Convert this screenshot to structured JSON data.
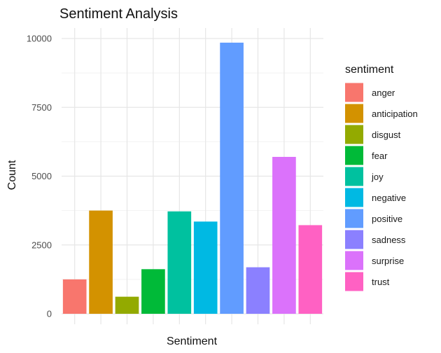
{
  "chart_data": {
    "type": "bar",
    "title": "Sentiment Analysis",
    "xlabel": "Sentiment",
    "ylabel": "Count",
    "categories": [
      "anger",
      "anticipation",
      "disgust",
      "fear",
      "joy",
      "negative",
      "positive",
      "sadness",
      "surprise",
      "trust"
    ],
    "values": [
      1250,
      3750,
      620,
      1620,
      3720,
      3350,
      9850,
      1690,
      5700,
      3220
    ],
    "colors": [
      "#F8766D",
      "#D39200",
      "#93AA00",
      "#00BA38",
      "#00C19F",
      "#00B9E3",
      "#619CFF",
      "#8B80FF",
      "#DB72FB",
      "#FF61C3"
    ],
    "ylim": [
      0,
      10300
    ],
    "yticks": [
      0,
      2500,
      5000,
      7500,
      10000
    ],
    "ytick_labels": [
      "0",
      "2500",
      "5000",
      "7500",
      "10000"
    ],
    "grid": true,
    "legend": {
      "title": "sentiment",
      "position": "right"
    }
  }
}
